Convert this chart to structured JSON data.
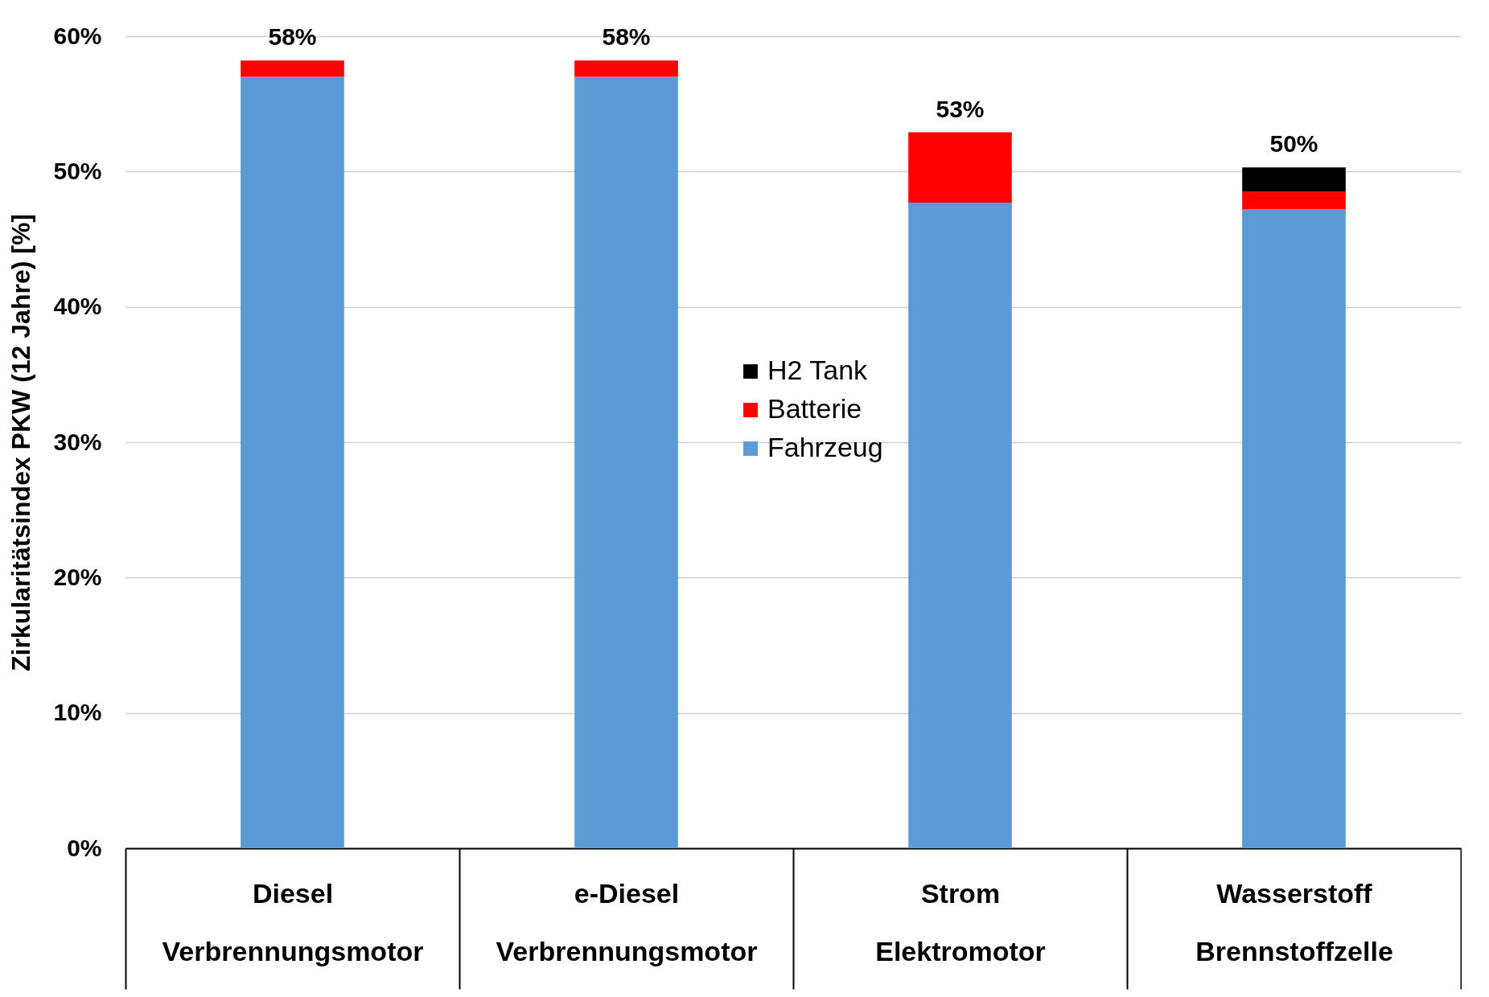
{
  "chart_data": {
    "type": "bar",
    "stacked": true,
    "ylabel": "Zirkularitätsindex PKW (12 Jahre) [%]",
    "categories": [
      "Diesel\nVerbrennungsmotor",
      "e-Diesel\nVerbrennungsmotor",
      "Strom\nElektromotor",
      "Wasserstoff\nBrennstoffzelle"
    ],
    "series": [
      {
        "name": "Fahrzeug",
        "color": "#5b9bd5",
        "values": [
          57.0,
          57.0,
          47.7,
          47.2
        ]
      },
      {
        "name": "Batterie",
        "color": "#ff0000",
        "values": [
          1.2,
          1.2,
          5.2,
          1.3
        ]
      },
      {
        "name": "H2 Tank",
        "color": "#000000",
        "values": [
          0,
          0,
          0,
          1.8
        ]
      }
    ],
    "totals": [
      "58%",
      "58%",
      "53%",
      "50%"
    ],
    "ylim": [
      0,
      60
    ],
    "yticks": [
      {
        "value": 0,
        "label": "0%"
      },
      {
        "value": 10,
        "label": "10%"
      },
      {
        "value": 20,
        "label": "20%"
      },
      {
        "value": 30,
        "label": "30%"
      },
      {
        "value": 40,
        "label": "40%"
      },
      {
        "value": 50,
        "label": "50%"
      },
      {
        "value": 60,
        "label": "60%"
      }
    ],
    "grid": "y",
    "legend": "center"
  }
}
